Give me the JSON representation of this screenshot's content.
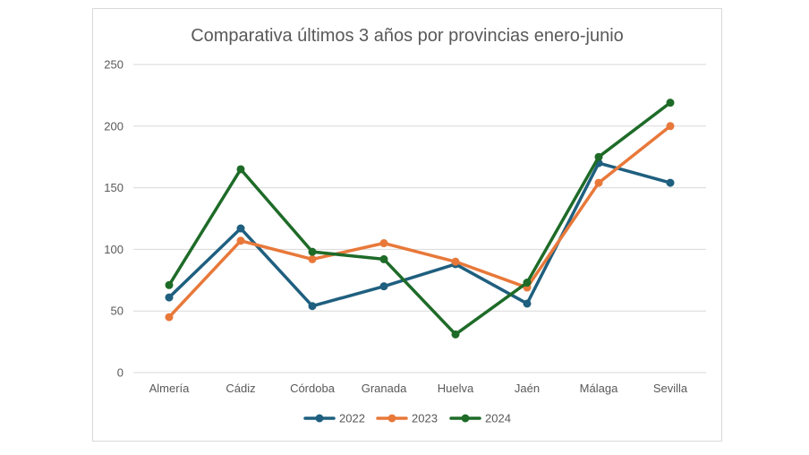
{
  "chart_data": {
    "type": "line",
    "title": "Comparativa últimos 3 años por provincias enero-junio",
    "xlabel": "",
    "ylabel": "",
    "ylim": [
      0,
      250
    ],
    "yticks": [
      "0",
      "50",
      "100",
      "150",
      "200",
      "250"
    ],
    "grid": true,
    "legend_position": "bottom",
    "categories": [
      "Almería",
      "Cádiz",
      "Córdoba",
      "Granada",
      "Huelva",
      "Jaén",
      "Málaga",
      "Sevilla"
    ],
    "series": [
      {
        "name": "2022",
        "color": "#1f5f7f",
        "values": [
          61,
          117,
          54,
          70,
          88,
          56,
          170,
          154
        ]
      },
      {
        "name": "2023",
        "color": "#e8783a",
        "values": [
          45,
          107,
          92,
          105,
          90,
          69,
          154,
          200
        ]
      },
      {
        "name": "2024",
        "color": "#1e6b28",
        "values": [
          71,
          165,
          98,
          92,
          31,
          73,
          175,
          219
        ]
      }
    ]
  }
}
